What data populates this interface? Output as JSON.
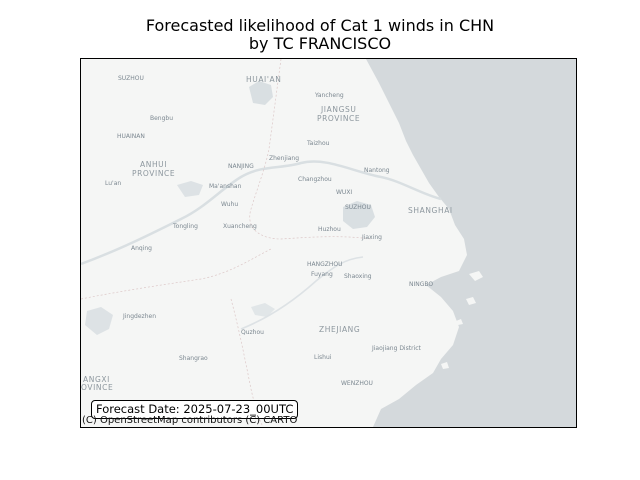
{
  "title_line1": "Forecasted likelihood of Cat 1 winds in CHN",
  "title_line2": "by TC FRANCISCO",
  "forecast_date": "Forecast Date: 2025-07-23_00UTC",
  "attribution": "(C) OpenStreetMap contributors (C) CARTO",
  "colors": {
    "land": "#f5f6f5",
    "sea": "#d4d9dc",
    "lake": "#d9dfe2",
    "label": "#7b8790"
  },
  "labels": {
    "huaian": "HUAI'AN",
    "suzhou_n": "SUZHOU",
    "yancheng": "Yancheng",
    "jiangsu_1": "JIANGSU",
    "jiangsu_2": "PROVINCE",
    "bengbu": "Bengbu",
    "huainan": "HUAINAN",
    "taizhou": "Taizhou",
    "zhenjiang": "Zhenjiang",
    "nantong": "Nantong",
    "anhui_1": "ANHUI",
    "anhui_2": "PROVINCE",
    "nanjing": "NANJING",
    "changzhou": "Changzhou",
    "luan": "Lu'an",
    "maanshan": "Ma'anshan",
    "wuxi": "WUXI",
    "suzhou_s": "SUZHOU",
    "shanghai": "SHANGHAI",
    "wuhu": "Wuhu",
    "tongling": "Tongling",
    "xuancheng": "Xuancheng",
    "huzhou": "Huzhou",
    "jiaxing": "Jiaxing",
    "anqing": "Anqing",
    "hangzhou": "HANGZHOU",
    "fuyang": "Fuyang",
    "shaoxing": "Shaoxing",
    "ningbo": "NINGBO",
    "jingdezhen": "Jingdezhen",
    "quzhou": "Quzhou",
    "zhejiang": "ZHEJIANG",
    "jiaojiang": "Jiaojiang District",
    "shangrao": "Shangrao",
    "lishui": "Lishui",
    "jiangxi_1": "ANGXI",
    "jiangxi_2": "OVINCE",
    "wenzhou": "WENZHOU"
  }
}
